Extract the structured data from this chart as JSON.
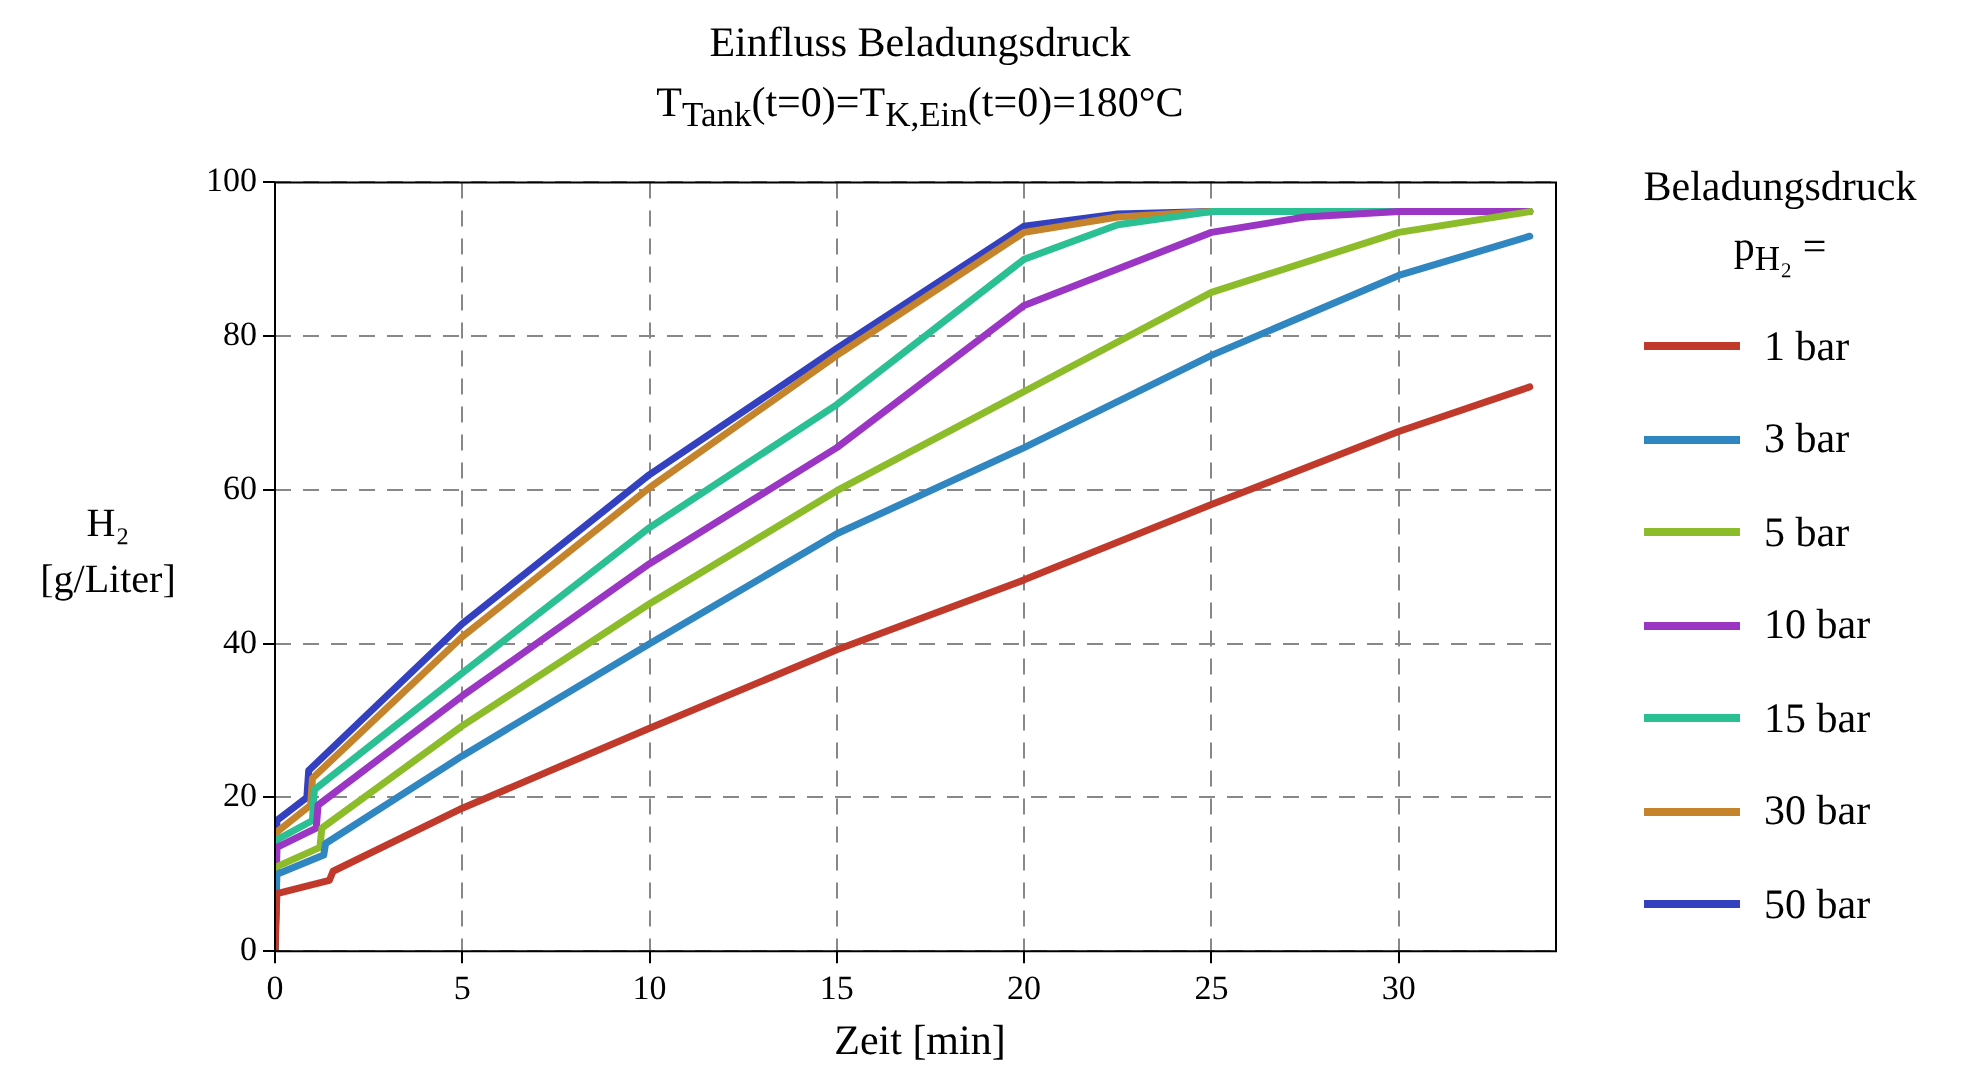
{
  "chart_data": {
    "type": "line",
    "title": "Einfluss Beladungsdruck",
    "subtitle": "T$_{Tank}$(t=0)=T$_{K,Ein}$(t=0)=180°C",
    "xlabel": "Zeit [min]",
    "ylabel": "H₂ [g/Liter]",
    "legend_title": "Beladungsdruck p$_{H₂}$ =",
    "xlim": [
      0,
      34.2
    ],
    "xticks": [
      0,
      5,
      10,
      15,
      20,
      25,
      30
    ],
    "ylim": [
      0,
      100
    ],
    "yticks": [
      0,
      20,
      40,
      60,
      80,
      100
    ],
    "grid": true,
    "legend": "right",
    "marker": "none",
    "line_style": "solid",
    "series": [
      {
        "name": "1 bar",
        "color": "#c0392b",
        "x": [
          0,
          0.05,
          1.45,
          1.55,
          5,
          10,
          15,
          20,
          25,
          30,
          33.5
        ],
        "values": [
          0,
          7.5,
          9.2,
          10.4,
          18.6,
          29,
          39.2,
          48.3,
          58.1,
          67.6,
          73.4
        ]
      },
      {
        "name": "3 bar",
        "color": "#2f86c1",
        "x": [
          0,
          0.05,
          1.3,
          1.35,
          5,
          10,
          15,
          20,
          25,
          30,
          33.5
        ],
        "values": [
          0,
          10,
          12.5,
          14,
          25.4,
          40,
          54.3,
          65.5,
          77.5,
          87.9,
          93
        ]
      },
      {
        "name": "5 bar",
        "color": "#8cbc2a",
        "x": [
          0,
          0.05,
          1.2,
          1.25,
          5,
          10,
          15,
          20,
          25,
          30,
          33.5
        ],
        "values": [
          0,
          11,
          13.5,
          16,
          29.3,
          45.2,
          59.9,
          72.8,
          85.7,
          93.5,
          96.2
        ]
      },
      {
        "name": "10 bar",
        "color": "#9b35c4",
        "x": [
          0,
          0.05,
          1.1,
          1.15,
          5,
          10,
          15,
          20,
          25,
          27.5,
          30,
          33.5
        ],
        "values": [
          0,
          13.5,
          16,
          19,
          33.2,
          50.4,
          65.5,
          84,
          93.5,
          95.5,
          96.2,
          96.2
        ]
      },
      {
        "name": "15 bar",
        "color": "#2bbf94",
        "x": [
          0,
          0.05,
          1,
          1.05,
          5,
          10,
          15,
          20,
          22.5,
          25,
          33.5
        ],
        "values": [
          0,
          14.5,
          17,
          21,
          36.2,
          55.1,
          71.1,
          90,
          94.5,
          96.2,
          96.2
        ]
      },
      {
        "name": "30 bar",
        "color": "#c5832c",
        "x": [
          0,
          0.05,
          0.95,
          1,
          5,
          10,
          15,
          20,
          22.5,
          25,
          33.5
        ],
        "values": [
          0,
          15.5,
          19,
          22.5,
          40.9,
          60.3,
          77.5,
          93.5,
          95.5,
          96.2,
          96.2
        ]
      },
      {
        "name": "50 bar",
        "color": "#3340c0",
        "x": [
          0,
          0.05,
          0.85,
          0.9,
          5,
          10,
          15,
          20,
          22.5,
          25,
          33.5
        ],
        "values": [
          0,
          17,
          20,
          23.5,
          42.6,
          62,
          78.4,
          94.3,
          95.9,
          96.2,
          96.2
        ]
      }
    ]
  }
}
